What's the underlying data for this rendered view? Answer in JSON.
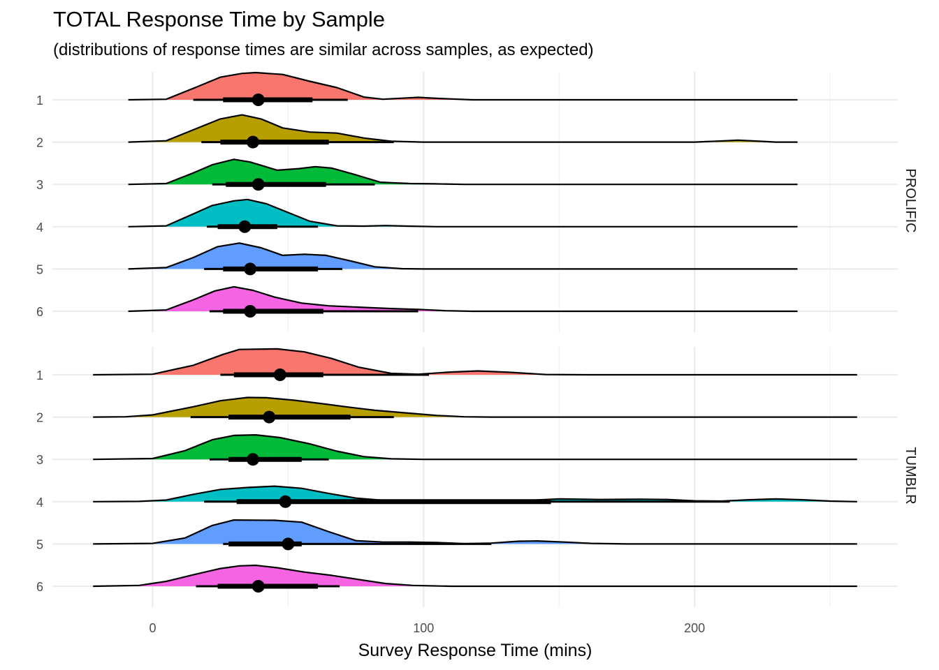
{
  "chart_data": {
    "type": "ridgeline",
    "title": "TOTAL Response Time by Sample",
    "subtitle": "(distributions of response times are similar across samples, as expected)",
    "xlabel": "Survey Response Time (mins)",
    "xlim": [
      -37,
      275
    ],
    "x_ticks": [
      0,
      100,
      200
    ],
    "grid": true,
    "colors": {
      "1": "#F8766D",
      "2": "#B79F00",
      "3": "#00BA38",
      "4": "#00BFC4",
      "5": "#619CFF",
      "6": "#F564E3"
    },
    "facets": [
      {
        "name": "PROLIFIC",
        "density_range": [
          -9,
          238
        ],
        "samples": [
          {
            "label": "1",
            "median": 39,
            "inner": [
              26,
              59
            ],
            "outer": [
              15,
              72
            ],
            "density": [
              [
                -9,
                0
              ],
              [
                5,
                0.02
              ],
              [
                15,
                0.42
              ],
              [
                25,
                0.83
              ],
              [
                33,
                0.97
              ],
              [
                38,
                1.0
              ],
              [
                48,
                0.93
              ],
              [
                58,
                0.68
              ],
              [
                68,
                0.45
              ],
              [
                78,
                0.1
              ],
              [
                85,
                0.02
              ],
              [
                92,
                0.06
              ],
              [
                98,
                0.09
              ],
              [
                106,
                0.05
              ],
              [
                118,
                0
              ],
              [
                238,
                0
              ]
            ]
          },
          {
            "label": "2",
            "median": 37,
            "inner": [
              25,
              65
            ],
            "outer": [
              18,
              89
            ],
            "density": [
              [
                -9,
                0
              ],
              [
                5,
                0.05
              ],
              [
                15,
                0.45
              ],
              [
                25,
                0.85
              ],
              [
                33,
                1.0
              ],
              [
                40,
                0.85
              ],
              [
                48,
                0.52
              ],
              [
                58,
                0.37
              ],
              [
                68,
                0.33
              ],
              [
                78,
                0.15
              ],
              [
                88,
                0.03
              ],
              [
                100,
                0
              ],
              [
                200,
                0
              ],
              [
                210,
                0.04
              ],
              [
                216,
                0.07
              ],
              [
                222,
                0.04
              ],
              [
                230,
                0
              ],
              [
                238,
                0
              ]
            ]
          },
          {
            "label": "3",
            "median": 39,
            "inner": [
              27,
              64
            ],
            "outer": [
              22,
              82
            ],
            "density": [
              [
                -9,
                0
              ],
              [
                5,
                0.03
              ],
              [
                15,
                0.42
              ],
              [
                22,
                0.72
              ],
              [
                30,
                0.92
              ],
              [
                36,
                0.82
              ],
              [
                46,
                0.52
              ],
              [
                54,
                0.58
              ],
              [
                60,
                0.65
              ],
              [
                66,
                0.6
              ],
              [
                74,
                0.38
              ],
              [
                84,
                0.08
              ],
              [
                95,
                0.03
              ],
              [
                104,
                0.02
              ],
              [
                115,
                0
              ],
              [
                238,
                0
              ]
            ]
          },
          {
            "label": "4",
            "median": 34,
            "inner": [
              24,
              46
            ],
            "outer": [
              20,
              61
            ],
            "density": [
              [
                -9,
                0
              ],
              [
                5,
                0.03
              ],
              [
                15,
                0.47
              ],
              [
                22,
                0.78
              ],
              [
                30,
                0.95
              ],
              [
                35,
                1.0
              ],
              [
                42,
                0.84
              ],
              [
                50,
                0.52
              ],
              [
                58,
                0.2
              ],
              [
                68,
                0.03
              ],
              [
                78,
                0.02
              ],
              [
                86,
                0.04
              ],
              [
                94,
                0.02
              ],
              [
                105,
                0
              ],
              [
                238,
                0
              ]
            ]
          },
          {
            "label": "5",
            "median": 36,
            "inner": [
              26,
              61
            ],
            "outer": [
              19,
              70
            ],
            "density": [
              [
                -9,
                0
              ],
              [
                5,
                0.05
              ],
              [
                15,
                0.42
              ],
              [
                24,
                0.82
              ],
              [
                32,
                0.95
              ],
              [
                40,
                0.78
              ],
              [
                48,
                0.5
              ],
              [
                56,
                0.54
              ],
              [
                64,
                0.5
              ],
              [
                72,
                0.32
              ],
              [
                82,
                0.08
              ],
              [
                92,
                0.01
              ],
              [
                100,
                0
              ],
              [
                238,
                0
              ]
            ]
          },
          {
            "label": "6",
            "median": 36,
            "inner": [
              26,
              63
            ],
            "outer": [
              21,
              98
            ],
            "density": [
              [
                -9,
                0
              ],
              [
                5,
                0.05
              ],
              [
                15,
                0.42
              ],
              [
                23,
                0.75
              ],
              [
                30,
                0.9
              ],
              [
                37,
                0.77
              ],
              [
                45,
                0.52
              ],
              [
                55,
                0.3
              ],
              [
                65,
                0.2
              ],
              [
                78,
                0.14
              ],
              [
                88,
                0.1
              ],
              [
                98,
                0.07
              ],
              [
                108,
                0.02
              ],
              [
                118,
                0
              ],
              [
                238,
                0
              ]
            ]
          }
        ]
      },
      {
        "name": "TUMBLR",
        "density_range": [
          -22,
          260
        ],
        "samples": [
          {
            "label": "1",
            "median": 47,
            "inner": [
              30,
              63
            ],
            "outer": [
              25,
              102
            ],
            "density": [
              [
                -22,
                0
              ],
              [
                0,
                0.02
              ],
              [
                15,
                0.35
              ],
              [
                26,
                0.75
              ],
              [
                32,
                0.93
              ],
              [
                46,
                0.95
              ],
              [
                56,
                0.84
              ],
              [
                66,
                0.6
              ],
              [
                76,
                0.28
              ],
              [
                88,
                0.05
              ],
              [
                98,
                0.02
              ],
              [
                110,
                0.1
              ],
              [
                120,
                0.14
              ],
              [
                132,
                0.09
              ],
              [
                145,
                0.01
              ],
              [
                160,
                0
              ],
              [
                260,
                0
              ]
            ]
          },
          {
            "label": "2",
            "median": 43,
            "inner": [
              28,
              73
            ],
            "outer": [
              14,
              89
            ],
            "density": [
              [
                -22,
                0
              ],
              [
                -10,
                0.01
              ],
              [
                0,
                0.08
              ],
              [
                15,
                0.38
              ],
              [
                25,
                0.6
              ],
              [
                35,
                0.72
              ],
              [
                42,
                0.71
              ],
              [
                52,
                0.62
              ],
              [
                62,
                0.5
              ],
              [
                72,
                0.37
              ],
              [
                82,
                0.25
              ],
              [
                95,
                0.14
              ],
              [
                105,
                0.06
              ],
              [
                115,
                0.01
              ],
              [
                125,
                0
              ],
              [
                260,
                0
              ]
            ]
          },
          {
            "label": "3",
            "median": 37,
            "inner": [
              28,
              55
            ],
            "outer": [
              21,
              65
            ],
            "density": [
              [
                -22,
                0
              ],
              [
                0,
                0.03
              ],
              [
                12,
                0.32
              ],
              [
                22,
                0.72
              ],
              [
                30,
                0.88
              ],
              [
                38,
                0.9
              ],
              [
                47,
                0.8
              ],
              [
                58,
                0.57
              ],
              [
                68,
                0.3
              ],
              [
                78,
                0.1
              ],
              [
                88,
                0.02
              ],
              [
                100,
                0
              ],
              [
                260,
                0
              ]
            ]
          },
          {
            "label": "4",
            "median": 49,
            "inner": [
              31,
              147
            ],
            "outer": [
              19,
              213
            ],
            "density": [
              [
                -22,
                0
              ],
              [
                -5,
                0.01
              ],
              [
                5,
                0.06
              ],
              [
                15,
                0.27
              ],
              [
                25,
                0.45
              ],
              [
                35,
                0.52
              ],
              [
                45,
                0.57
              ],
              [
                55,
                0.49
              ],
              [
                65,
                0.3
              ],
              [
                75,
                0.13
              ],
              [
                85,
                0.05
              ],
              [
                100,
                0.03
              ],
              [
                125,
                0.03
              ],
              [
                140,
                0.05
              ],
              [
                150,
                0.1
              ],
              [
                165,
                0.08
              ],
              [
                180,
                0.09
              ],
              [
                190,
                0.08
              ],
              [
                200,
                0.03
              ],
              [
                210,
                0.02
              ],
              [
                220,
                0.07
              ],
              [
                230,
                0.1
              ],
              [
                240,
                0.07
              ],
              [
                250,
                0.02
              ],
              [
                260,
                0
              ]
            ]
          },
          {
            "label": "5",
            "median": 50,
            "inner": [
              28,
              55
            ],
            "outer": [
              26,
              125
            ],
            "density": [
              [
                -22,
                0
              ],
              [
                0,
                0.02
              ],
              [
                12,
                0.22
              ],
              [
                22,
                0.68
              ],
              [
                30,
                0.88
              ],
              [
                45,
                0.87
              ],
              [
                55,
                0.8
              ],
              [
                65,
                0.45
              ],
              [
                75,
                0.12
              ],
              [
                85,
                0.07
              ],
              [
                95,
                0.07
              ],
              [
                105,
                0.05
              ],
              [
                115,
                0.01
              ],
              [
                125,
                0.03
              ],
              [
                135,
                0.1
              ],
              [
                142,
                0.11
              ],
              [
                152,
                0.07
              ],
              [
                162,
                0.02
              ],
              [
                175,
                0
              ],
              [
                260,
                0
              ]
            ]
          },
          {
            "label": "6",
            "median": 39,
            "inner": [
              24,
              61
            ],
            "outer": [
              16,
              69
            ],
            "density": [
              [
                -22,
                0
              ],
              [
                -5,
                0.03
              ],
              [
                5,
                0.18
              ],
              [
                15,
                0.42
              ],
              [
                25,
                0.65
              ],
              [
                32,
                0.75
              ],
              [
                38,
                0.77
              ],
              [
                46,
                0.68
              ],
              [
                56,
                0.52
              ],
              [
                66,
                0.4
              ],
              [
                76,
                0.25
              ],
              [
                86,
                0.1
              ],
              [
                96,
                0.03
              ],
              [
                110,
                0
              ],
              [
                260,
                0
              ]
            ]
          }
        ]
      }
    ]
  }
}
